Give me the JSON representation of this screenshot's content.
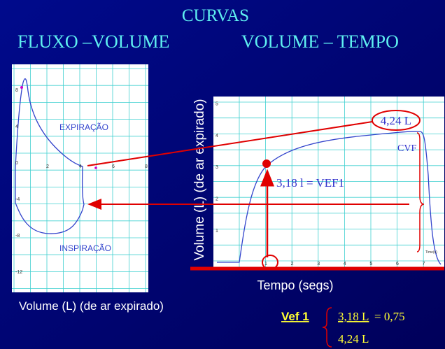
{
  "title": "CURVAS",
  "left_heading": "FLUXO –VOLUME",
  "right_heading": "VOLUME – TEMPO",
  "flow_volume": {
    "y_ticks": [
      "8",
      "4",
      "0",
      "-4",
      "-8",
      "-12"
    ],
    "x_ticks": [
      "2",
      "4",
      "6",
      "8"
    ],
    "expiration_label": "EXPIRAÇÃO",
    "inspiration_label": "INSPIRAÇÃO",
    "x_label": "Volume (L) (de ar expirado)"
  },
  "volume_time": {
    "y_ticks": [
      "1",
      "2",
      "3",
      "4",
      "5"
    ],
    "x_ticks": [
      "1",
      "2",
      "3",
      "4",
      "5",
      "6",
      "7"
    ],
    "x_unit": "Time(s)",
    "y_label": "Volume (L) (de ar expirado)",
    "x_label": "Tempo (segs)",
    "fvc_value": "4,24 L",
    "fvc_label": "CVF",
    "fev1_label": "3,18 l = VEF1"
  },
  "formula": {
    "name": "Vef 1",
    "numerator": "3,18 L",
    "result": "= 0,75",
    "denominator": "4,24 L"
  }
}
